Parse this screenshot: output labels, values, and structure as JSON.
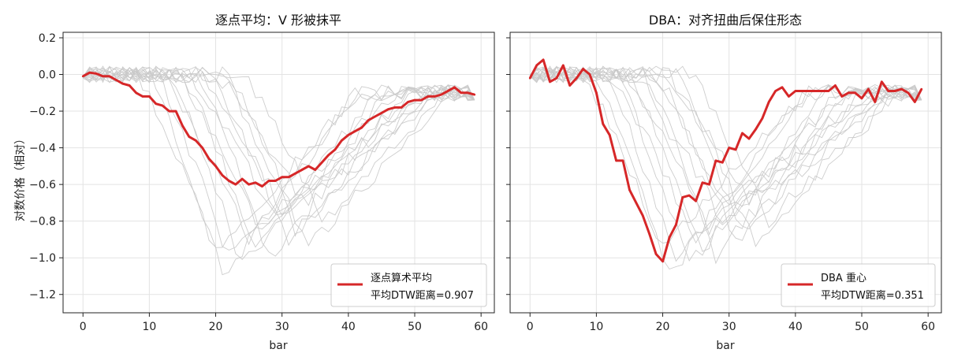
{
  "chart_data": [
    {
      "type": "line",
      "title": "逐点平均：V 形被抹平",
      "xlabel": "bar",
      "ylabel": "对数价格（相对）",
      "xlim": [
        -3,
        62
      ],
      "ylim": [
        -1.3,
        0.23
      ],
      "x_ticks": [
        0,
        10,
        20,
        30,
        40,
        50,
        60
      ],
      "y_ticks": [
        0.2,
        0.0,
        -0.2,
        -0.4,
        -0.6,
        -0.8,
        -1.0,
        -1.2
      ],
      "x_tick_labels": [
        "0",
        "10",
        "20",
        "30",
        "40",
        "50",
        "60"
      ],
      "y_tick_labels": [
        "0.2",
        "0.0",
        "−0.2",
        "−0.4",
        "−0.6",
        "−0.8",
        "−1.0",
        "−1.2"
      ],
      "grid": true,
      "legend_position": "lower-right",
      "background_series_color": "#c8c8c8",
      "background_series_note": "gray curves: individual V-shaped price paths (troughs between bar 10 and bar 35)",
      "series": [
        {
          "name": "逐点算术平均",
          "legend_line2": "平均DTW距离=0.907",
          "color": "#d62728",
          "x": [
            0,
            1,
            2,
            3,
            4,
            5,
            6,
            7,
            8,
            9,
            10,
            11,
            12,
            13,
            14,
            15,
            16,
            17,
            18,
            19,
            20,
            21,
            22,
            23,
            24,
            25,
            26,
            27,
            28,
            29,
            30,
            31,
            32,
            33,
            34,
            35,
            36,
            37,
            38,
            39,
            40,
            41,
            42,
            43,
            44,
            45,
            46,
            47,
            48,
            49,
            50,
            51,
            52,
            53,
            54,
            55,
            56,
            57,
            58,
            59
          ],
          "values": [
            -0.01,
            0.01,
            0.005,
            -0.01,
            -0.01,
            -0.03,
            -0.05,
            -0.06,
            -0.1,
            -0.12,
            -0.12,
            -0.16,
            -0.17,
            -0.2,
            -0.2,
            -0.28,
            -0.34,
            -0.36,
            -0.4,
            -0.46,
            -0.5,
            -0.55,
            -0.58,
            -0.6,
            -0.57,
            -0.6,
            -0.59,
            -0.61,
            -0.58,
            -0.58,
            -0.56,
            -0.56,
            -0.54,
            -0.52,
            -0.5,
            -0.52,
            -0.48,
            -0.44,
            -0.41,
            -0.36,
            -0.33,
            -0.31,
            -0.29,
            -0.25,
            -0.23,
            -0.21,
            -0.19,
            -0.18,
            -0.18,
            -0.15,
            -0.14,
            -0.14,
            -0.12,
            -0.12,
            -0.11,
            -0.09,
            -0.07,
            -0.1,
            -0.1,
            -0.11
          ]
        }
      ]
    },
    {
      "type": "line",
      "title": "DBA：对齐扭曲后保住形态",
      "xlabel": "bar",
      "ylabel": "",
      "xlim": [
        -3,
        62
      ],
      "ylim": [
        -1.3,
        0.23
      ],
      "x_ticks": [
        0,
        10,
        20,
        30,
        40,
        50,
        60
      ],
      "y_ticks": [
        0.2,
        0.0,
        -0.2,
        -0.4,
        -0.6,
        -0.8,
        -1.0,
        -1.2
      ],
      "x_tick_labels": [
        "0",
        "10",
        "20",
        "30",
        "40",
        "50",
        "60"
      ],
      "y_tick_labels": [],
      "grid": true,
      "legend_position": "lower-right",
      "background_series_color": "#c8c8c8",
      "series": [
        {
          "name": "DBA 重心",
          "legend_line2": "平均DTW距离=0.351",
          "color": "#d62728",
          "x": [
            0,
            1,
            2,
            3,
            4,
            5,
            6,
            7,
            8,
            9,
            10,
            11,
            12,
            13,
            14,
            15,
            16,
            17,
            18,
            19,
            20,
            21,
            22,
            23,
            24,
            25,
            26,
            27,
            28,
            29,
            30,
            31,
            32,
            33,
            34,
            35,
            36,
            37,
            38,
            39,
            40,
            41,
            42,
            43,
            44,
            45,
            46,
            47,
            48,
            49,
            50,
            51,
            52,
            53,
            54,
            55,
            56,
            57,
            58,
            59
          ],
          "values": [
            -0.02,
            0.05,
            0.08,
            -0.04,
            -0.02,
            0.05,
            -0.06,
            -0.02,
            0.03,
            0.0,
            -0.1,
            -0.27,
            -0.33,
            -0.47,
            -0.47,
            -0.63,
            -0.7,
            -0.77,
            -0.87,
            -0.98,
            -1.02,
            -0.89,
            -0.82,
            -0.67,
            -0.66,
            -0.69,
            -0.59,
            -0.6,
            -0.47,
            -0.48,
            -0.4,
            -0.41,
            -0.32,
            -0.35,
            -0.3,
            -0.24,
            -0.15,
            -0.09,
            -0.07,
            -0.12,
            -0.09,
            -0.09,
            -0.09,
            -0.09,
            -0.09,
            -0.09,
            -0.06,
            -0.12,
            -0.1,
            -0.1,
            -0.13,
            -0.08,
            -0.15,
            -0.04,
            -0.09,
            -0.09,
            -0.08,
            -0.1,
            -0.15,
            -0.08
          ]
        }
      ]
    }
  ]
}
